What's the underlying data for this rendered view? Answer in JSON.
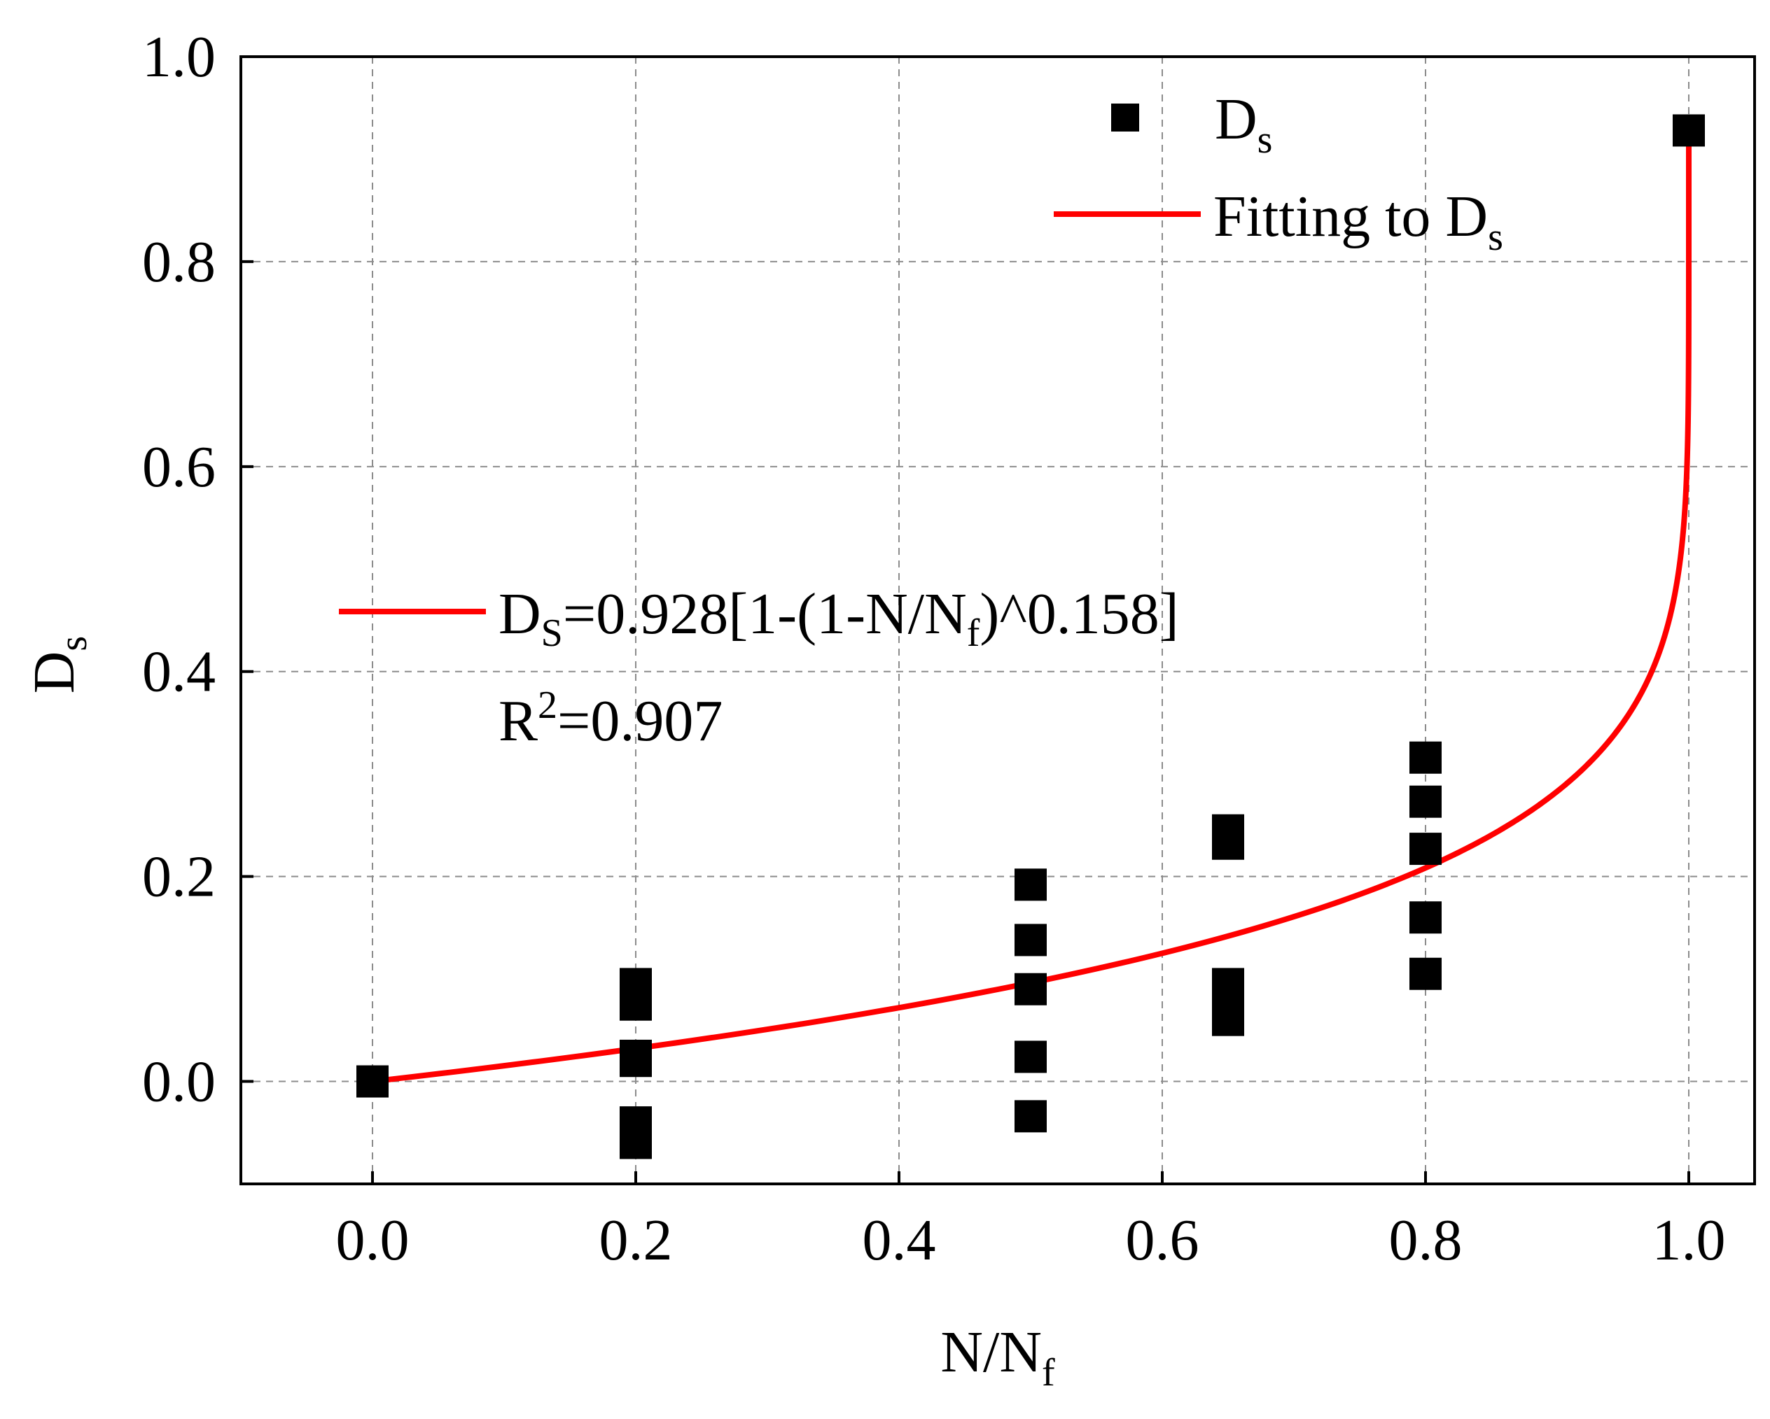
{
  "chart_data": {
    "type": "scatter",
    "xlabel": "N/N",
    "xlabel_sub": "f",
    "ylabel": "D",
    "ylabel_sub": "s",
    "xlim": [
      -0.1,
      1.05
    ],
    "ylim": [
      -0.1,
      1.0
    ],
    "grid": true,
    "x_ticks": [
      0.0,
      0.2,
      0.4,
      0.6,
      0.8,
      1.0
    ],
    "x_tick_labels": [
      "0.0",
      "0.2",
      "0.4",
      "0.6",
      "0.8",
      "1.0"
    ],
    "y_ticks": [
      0.0,
      0.2,
      0.4,
      0.6,
      0.8,
      1.0
    ],
    "y_tick_labels": [
      "0.0",
      "0.2",
      "0.4",
      "0.6",
      "0.8",
      "1.0"
    ],
    "series": [
      {
        "name": "D",
        "name_sub": "s",
        "kind": "scatter",
        "marker": "square",
        "color": "#000000",
        "points": [
          {
            "x": 0.0,
            "y": 0.0
          },
          {
            "x": 0.2,
            "y": 0.095
          },
          {
            "x": 0.2,
            "y": 0.075
          },
          {
            "x": 0.2,
            "y": 0.025
          },
          {
            "x": 0.2,
            "y": 0.02
          },
          {
            "x": 0.2,
            "y": -0.04
          },
          {
            "x": 0.2,
            "y": -0.06
          },
          {
            "x": 0.5,
            "y": 0.192
          },
          {
            "x": 0.5,
            "y": 0.138
          },
          {
            "x": 0.5,
            "y": 0.09
          },
          {
            "x": 0.5,
            "y": 0.024
          },
          {
            "x": 0.5,
            "y": -0.034
          },
          {
            "x": 0.65,
            "y": 0.245
          },
          {
            "x": 0.65,
            "y": 0.232
          },
          {
            "x": 0.65,
            "y": 0.095
          },
          {
            "x": 0.65,
            "y": 0.08
          },
          {
            "x": 0.65,
            "y": 0.065
          },
          {
            "x": 0.65,
            "y": 0.06
          },
          {
            "x": 0.8,
            "y": 0.316
          },
          {
            "x": 0.8,
            "y": 0.273
          },
          {
            "x": 0.8,
            "y": 0.227
          },
          {
            "x": 0.8,
            "y": 0.16
          },
          {
            "x": 0.8,
            "y": 0.105
          },
          {
            "x": 1.0,
            "y": 0.928
          }
        ]
      },
      {
        "name": "Fitting to D",
        "name_sub": "s",
        "kind": "line",
        "color": "#ff0000",
        "equation": {
          "a": 0.928,
          "b": 0.158
        },
        "x_range": [
          0.0,
          1.0
        ]
      }
    ],
    "legend_position": "top-right",
    "annotation": {
      "eq_lhs": "D",
      "eq_lhs_sub": "S",
      "eq_mid": "=0.928[1-(1-N/N",
      "eq_mid_sub": "f",
      "eq_end": ")^0.158]",
      "r2_lhs": "R",
      "r2_sup": "2",
      "r2_rhs": "=0.907"
    }
  }
}
